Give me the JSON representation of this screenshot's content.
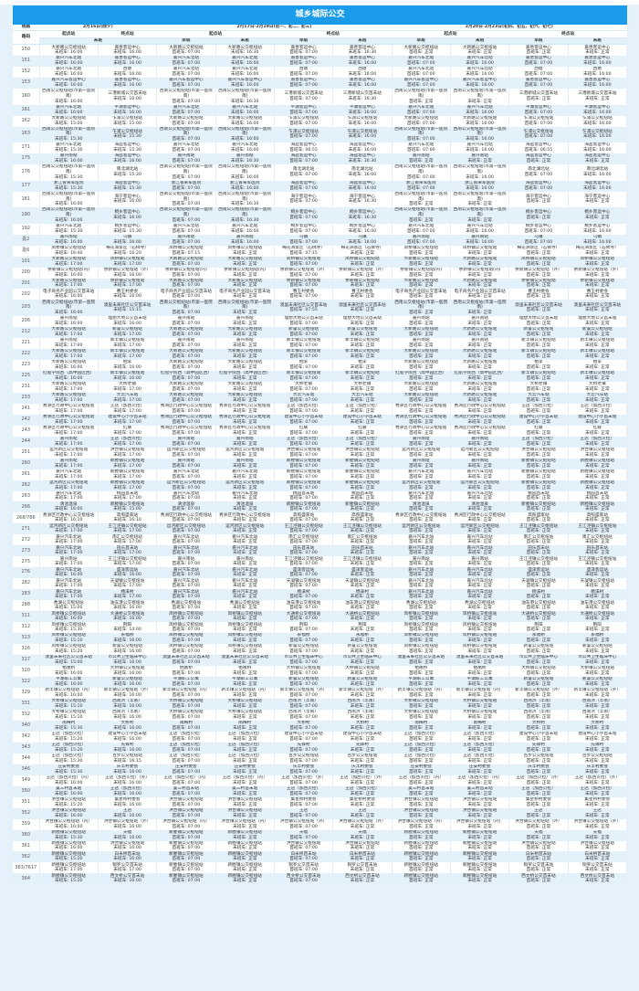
{
  "title": "城乡城际公交",
  "header": {
    "route_label": "线路",
    "route_sub_label": "路码",
    "period1": "2月16日(除夕)",
    "period2": "2月17日-2月19日(初一、初二、初三)",
    "period3": "2月20日-2月23日(初四、初五、初六、初七)",
    "start": "起点站",
    "end": "终点站",
    "early": "早班",
    "late": "末班",
    "first_bus": "首班车: ",
    "last_bus": "末班车: "
  },
  "colors": {
    "accent": "#1b9cea",
    "row_alt": "#e3f1fb"
  },
  "default_p17": [
    "07:00",
    "正常",
    "07:00",
    "正常"
  ],
  "default_p20": [
    "正常",
    "正常",
    "正常",
    "正常"
  ],
  "rows": [
    {
      "r": "150",
      "s": "大新路公交枢纽站",
      "a": "16:00",
      "e": "嘉善客运中心",
      "b": "16:00",
      "p17": [
        "07:00",
        "16:30",
        "07:00",
        "16:30"
      ]
    },
    {
      "r": "151",
      "s": "嘉兴汽车北站",
      "a": "16:00",
      "e": "嘉善客运中心",
      "b": "16:00",
      "p17": [
        "07:00",
        "16:00",
        "07:00",
        "16:00"
      ],
      "p20": [
        "07:00",
        "16:00",
        "07:00",
        "16:00"
      ]
    },
    {
      "r": "152",
      "s": "嘉兴汽车北站",
      "a": "16:00",
      "e": "西塘",
      "b": "16:00",
      "p17": [
        "07:00",
        "16:00",
        "07:00",
        "16:00"
      ],
      "p20": [
        "07:00",
        "16:00",
        "07:00",
        "16:00"
      ]
    },
    {
      "r": "153",
      "s": "嘉兴汽车客运中心",
      "a": "16:00",
      "e": "嘉善客运中心",
      "b": "16:00",
      "p17": [
        "07:00",
        "16:00",
        "07:00",
        "16:00"
      ],
      "p20": [
        "07:00",
        "16:00",
        "07:00",
        "16:00"
      ]
    },
    {
      "r": "160",
      "s": "西南公交枢纽站(市第一医院南)",
      "a": "16:00",
      "e": "三港新城公交首末站",
      "b": "16:00",
      "p17": [
        "07:00",
        "16:30",
        "07:00",
        "16:30"
      ]
    },
    {
      "r": "161",
      "s": "嘉兴汽车北站",
      "a": "16:00",
      "e": "平湖客运中心",
      "b": "16:00",
      "p17": [
        "07:00",
        "16:00",
        "07:00",
        "16:00"
      ],
      "p20": [
        "07:00",
        "16:00",
        "07:00",
        "16:00"
      ]
    },
    {
      "r": "162",
      "s": "大新路公交枢纽站",
      "a": "15:00",
      "e": "乍浦公交枢纽站",
      "b": "15:00",
      "p17": [
        "07:00",
        "16:00",
        "07:00",
        "16:00"
      ],
      "p20": [
        "07:00",
        "16:00",
        "07:00",
        "16:00"
      ]
    },
    {
      "r": "163",
      "s": "西南公交枢纽站(市第一医院南)",
      "a": "15:30",
      "e": "乍浦公交枢纽站",
      "b": "15:30",
      "p17": [
        "07:00",
        "16:00",
        "07:00",
        "16:00"
      ],
      "p20": [
        "07:00",
        "16:00",
        "07:00",
        "16:00"
      ]
    },
    {
      "r": "171",
      "s": "嘉兴汽车北站",
      "a": "15:30",
      "e": "海盐客运中心",
      "b": "15:30",
      "p17": [
        "07:00",
        "16:00",
        "06:55",
        "16:00"
      ],
      "p20": [
        "07:00",
        "16:00",
        "06:55",
        "16:00"
      ]
    },
    {
      "r": "175",
      "s": "嘉兴南站",
      "a": "16:00",
      "e": "海盐客运中心",
      "b": "16:00",
      "p17": [
        "07:00",
        "16:30",
        "07:00",
        "16:30"
      ]
    },
    {
      "r": "176",
      "s": "西南公交枢纽站(市第一医院南)",
      "a": "15:30",
      "e": "南北湖北站",
      "b": "15:30",
      "p17": [
        "07:00",
        "16:00",
        "07:00",
        "16:00"
      ],
      "p20": [
        "07:00",
        "16:00",
        "07:00",
        "16:00"
      ]
    },
    {
      "r": "177",
      "s": "浙江省荣军医院",
      "a": "15:30",
      "e": "海盐客运中心",
      "b": "15:30",
      "p17": [
        "07:00",
        "16:00",
        "07:00",
        "16:00"
      ],
      "p20": [
        "07:00",
        "16:00",
        "07:00",
        "16:00"
      ]
    },
    {
      "r": "181",
      "s": "西南公交枢纽站(市第一医院南)",
      "a": "16:00",
      "e": "海宁客运中心",
      "b": "16:00",
      "p17": [
        "07:00",
        "16:30",
        "07:00",
        "16:30"
      ]
    },
    {
      "r": "190",
      "s": "西南公交枢纽站(市第一医院南)",
      "a": "16:00",
      "e": "桐乡客运中心",
      "b": "16:00",
      "p17": [
        "07:00",
        "16:30",
        "07:00",
        "16:30"
      ]
    },
    {
      "r": "192",
      "s": "嘉兴汽车北站",
      "a": "15:30",
      "e": "桐乡客运中心",
      "b": "15:30",
      "p17": [
        "07:00",
        "16:00",
        "07:00",
        "16:00"
      ],
      "p20": [
        "07:00",
        "16:00",
        "07:00",
        "16:00"
      ]
    },
    {
      "r": "嘉2",
      "s": "嘉兴南站",
      "a": "16:00",
      "e": "乌镇",
      "b": "16:00",
      "p17": [
        "07:00",
        "16:00",
        "07:00",
        "16:00"
      ],
      "p20": [
        "07:00",
        "16:00",
        "07:00",
        "16:00"
      ]
    },
    {
      "r": "嘉6",
      "s": "凤桥镇公交枢纽站",
      "a": "16:40",
      "e": "梅花洲景区（石佛寺）",
      "b": "16:20",
      "p17": [
        "07:15",
        "正常",
        "07:15",
        "正常"
      ]
    },
    {
      "r": "101",
      "s": "大新路公交枢纽站",
      "a": "17:00",
      "e": "凤桥镇公交枢纽站",
      "b": "17:00"
    },
    {
      "r": "200",
      "s": "余新镇公交枢纽站(内)",
      "a": "16:00",
      "e": "余新镇公交枢纽站（外）",
      "b": "16:00"
    },
    {
      "r": "201",
      "s": "大新路公交枢纽站",
      "a": "17:00",
      "e": "余新镇公交枢纽站",
      "b": "17:00"
    },
    {
      "r": "202",
      "s": "电子商务产业园公交首末站",
      "a": "16:00",
      "e": "曹王村委会",
      "b": "16:00"
    },
    {
      "r": "203",
      "s": "西南公交枢纽站(市第一医院南)",
      "a": "16:00",
      "e": "澳里未来社区公交首末站",
      "b": "15:15",
      "p17": [
        "07:00",
        "正常",
        "07:55",
        "正常"
      ]
    },
    {
      "r": "206",
      "s": "嘉兴南站",
      "a": "16:00",
      "e": "理想大地公交首末站",
      "b": "16:00"
    },
    {
      "r": "212",
      "s": "大新路公交枢纽站",
      "a": "17:00",
      "e": "新篁公交枢纽站",
      "b": "17:00"
    },
    {
      "r": "221",
      "s": "嘉兴南站",
      "a": "17:00",
      "e": "新丰镇公交枢纽站",
      "b": "17:00"
    },
    {
      "r": "222",
      "s": "大新路公交枢纽站",
      "a": "17:00",
      "e": "新丰镇公交枢纽站",
      "b": "17:00"
    },
    {
      "r": "223",
      "s": "大新路公交枢纽站",
      "a": "16:00",
      "e": "栖李",
      "b": "16:00"
    },
    {
      "r": "225",
      "s": "红船学院西（高中园区西）",
      "a": "16:00",
      "e": "新丰镇公交枢纽站",
      "b": "16:00"
    },
    {
      "r": "231",
      "s": "大新路公交枢纽站",
      "a": "17:00",
      "e": "大桥老镇",
      "b": "17:00"
    },
    {
      "r": "233",
      "s": "大新路公交枢纽站",
      "a": "17:00",
      "e": "大云汽车站",
      "b": "17:00"
    },
    {
      "r": "241",
      "s": "秀洲区行政中心公交枢纽站",
      "a": "17:00",
      "e": "王店（加西贝拉）",
      "b": "17:00"
    },
    {
      "r": "242",
      "s": "秀洲区行政中心公交枢纽站",
      "a": "17:00",
      "e": "建设中心小学首末站",
      "b": "17:00"
    },
    {
      "r": "243",
      "s": "秀洲区行政中心公交枢纽站",
      "a": "17:00",
      "e": "红联",
      "b": "17:00"
    },
    {
      "r": "244",
      "s": "嘉兴南站",
      "a": "17:00",
      "e": "王店（加西贝拉）",
      "b": "17:00"
    },
    {
      "r": "251",
      "s": "运河新区公交枢纽站",
      "a": "17:00",
      "e": "洪合镇公交枢纽站",
      "b": "17:00"
    },
    {
      "r": "260",
      "s": "嘉兴南站",
      "a": "17:00",
      "e": "新塍镇公交枢纽站",
      "b": "17:00"
    },
    {
      "r": "261",
      "s": "嘉兴汽车北站",
      "a": "17:00",
      "e": "新塍镇公交枢纽站",
      "b": "17:00"
    },
    {
      "r": "262",
      "s": "运河新区公交枢纽站",
      "a": "17:00",
      "e": "新塍镇公交枢纽站",
      "b": "17:00"
    },
    {
      "r": "263",
      "s": "嘉兴汽车北站",
      "a": "17:00",
      "e": "桃园首末站",
      "b": "17:00"
    },
    {
      "r": "266",
      "s": "清池温泉",
      "a": "16:00",
      "e": "新塍镇公交枢纽站",
      "b": "15:00"
    },
    {
      "r": "268/786",
      "s": "秀洲区行政中心公交枢纽站",
      "a": "16:10",
      "e": "高照盛家站",
      "b": "16:10"
    },
    {
      "r": "271",
      "s": "运河新区公交枢纽站",
      "a": "17:00",
      "e": "王江泾镇公交枢纽站",
      "b": "17:00"
    },
    {
      "r": "272",
      "s": "嘉兴汽车北站",
      "a": "17:00",
      "e": "南汇公交枢纽站",
      "b": "17:00"
    },
    {
      "r": "273",
      "s": "嘉兴汽车北站",
      "a": "17:00",
      "e": "田乐首末站",
      "b": "17:00"
    },
    {
      "r": "275",
      "s": "嘉兴南站",
      "a": "17:00",
      "e": "王江泾镇公交枢纽站",
      "b": "17:00"
    },
    {
      "r": "276",
      "s": "嘉兴汽车北站",
      "a": "16:00",
      "e": "盛泽客运站",
      "b": "16:00"
    },
    {
      "r": "282",
      "s": "嘉兴汽车北站",
      "a": "17:00",
      "e": "天凝镇公交枢纽站",
      "b": "17:00"
    },
    {
      "r": "283",
      "s": "嘉兴汽车北站",
      "a": "17:00",
      "e": "杨溪村",
      "b": "17:00"
    },
    {
      "r": "288",
      "s": "秀湖公交枢纽站",
      "a": "15:00",
      "e": "油车港公交枢纽站",
      "b": "16:00"
    },
    {
      "r": "311",
      "s": "凤桥镇公交枢纽站",
      "a": "16:00",
      "e": "大通桥公交枢纽站",
      "b": "16:00"
    },
    {
      "r": "312",
      "s": "凤桥镇公交枢纽站",
      "a": "15:30",
      "e": "荆阳",
      "b": "14:00"
    },
    {
      "r": "313",
      "s": "凤桥镇公交枢纽站",
      "a": "15:10",
      "e": "永福桥",
      "b": "16:00"
    },
    {
      "r": "316",
      "s": "凤桥镇公交枢纽站",
      "a": "15:20",
      "e": "新篁公交枢纽站",
      "b": "16:00"
    },
    {
      "r": "317",
      "s": "澳里未来社区公交首末站",
      "a": "15:00",
      "e": "市公共卫生临床中心",
      "b": "16:00"
    },
    {
      "r": "320",
      "s": "栖凰桥",
      "a": "16:00",
      "e": "大桥镇公交枢纽站",
      "b": "16:00"
    },
    {
      "r": "322",
      "s": "平湖职工公寓",
      "a": "16:00",
      "e": "新篁公交枢纽站",
      "b": "16:00"
    },
    {
      "r": "329",
      "s": "新丰镇公交枢纽站（内）",
      "a": "16:00",
      "e": "新丰镇公交枢纽站（外）",
      "b": "16:00"
    },
    {
      "r": "331",
      "s": "大桥镇公交枢纽站",
      "a": "15:10",
      "e": "西南浜（丰南）",
      "b": "16:00"
    },
    {
      "r": "332",
      "s": "大桥镇公交枢纽站",
      "a": "15:10",
      "e": "西南浜（丰南）",
      "b": "16:00"
    },
    {
      "r": "340",
      "s": "南梅村",
      "a": "15:30",
      "e": "大桥村",
      "b": "16:00"
    },
    {
      "r": "342",
      "s": "王店（加西贝拉）",
      "a": "15:20",
      "e": "建设中心小学首末站",
      "b": "16:00"
    },
    {
      "r": "343",
      "s": "王店（加西贝拉）",
      "a": "15:20",
      "e": "先锋村",
      "b": "16:00"
    },
    {
      "r": "344",
      "s": "王店（加西贝拉）",
      "a": "15:30",
      "e": "百步公交枢纽站",
      "b": "16:15"
    },
    {
      "r": "346",
      "s": "庄安村委会",
      "a": "15:30",
      "e": "庆丰村委会",
      "b": "16:00"
    },
    {
      "r": "349",
      "s": "王店（加西贝拉）（内）",
      "a": "16:00",
      "e": "王店（加西贝拉）（外）",
      "b": "16:00"
    },
    {
      "r": "350",
      "s": "吴三村首末站",
      "a": "16:00",
      "e": "王店（加西贝拉）",
      "b": "16:00"
    },
    {
      "r": "351",
      "s": "洪合镇公交枢纽站",
      "a": "15:20",
      "e": "集星桥村委会",
      "b": "16:00"
    },
    {
      "r": "352",
      "s": "洪合镇公交枢纽站",
      "a": "16:00",
      "e": "王店",
      "b": "16:00"
    },
    {
      "r": "359",
      "s": "洪合镇公交枢纽站（内）",
      "a": "16:00",
      "e": "洪合镇公交枢纽站（外）",
      "b": "16:00"
    },
    {
      "r": "360",
      "s": "新塍镇公交枢纽站",
      "a": "15:30",
      "e": "天福",
      "b": "16:00"
    },
    {
      "r": "361",
      "s": "新塍镇公交枢纽站",
      "a": "16:00",
      "e": "洪合镇公交枢纽站",
      "b": "16:00"
    },
    {
      "r": "362",
      "s": "新塍镇公交枢纽站",
      "a": "15:20",
      "e": "白米桥首末站",
      "b": "16:00"
    },
    {
      "r": "363/7617",
      "s": "新塍镇公交枢纽站",
      "a": "17:00",
      "e": "铜罗公交首末站",
      "b": "17:00"
    },
    {
      "r": "364",
      "s": "新塍镇公交枢纽站",
      "a": "15:20",
      "e": "西文桥公交首末站",
      "b": "16:00"
    }
  ]
}
